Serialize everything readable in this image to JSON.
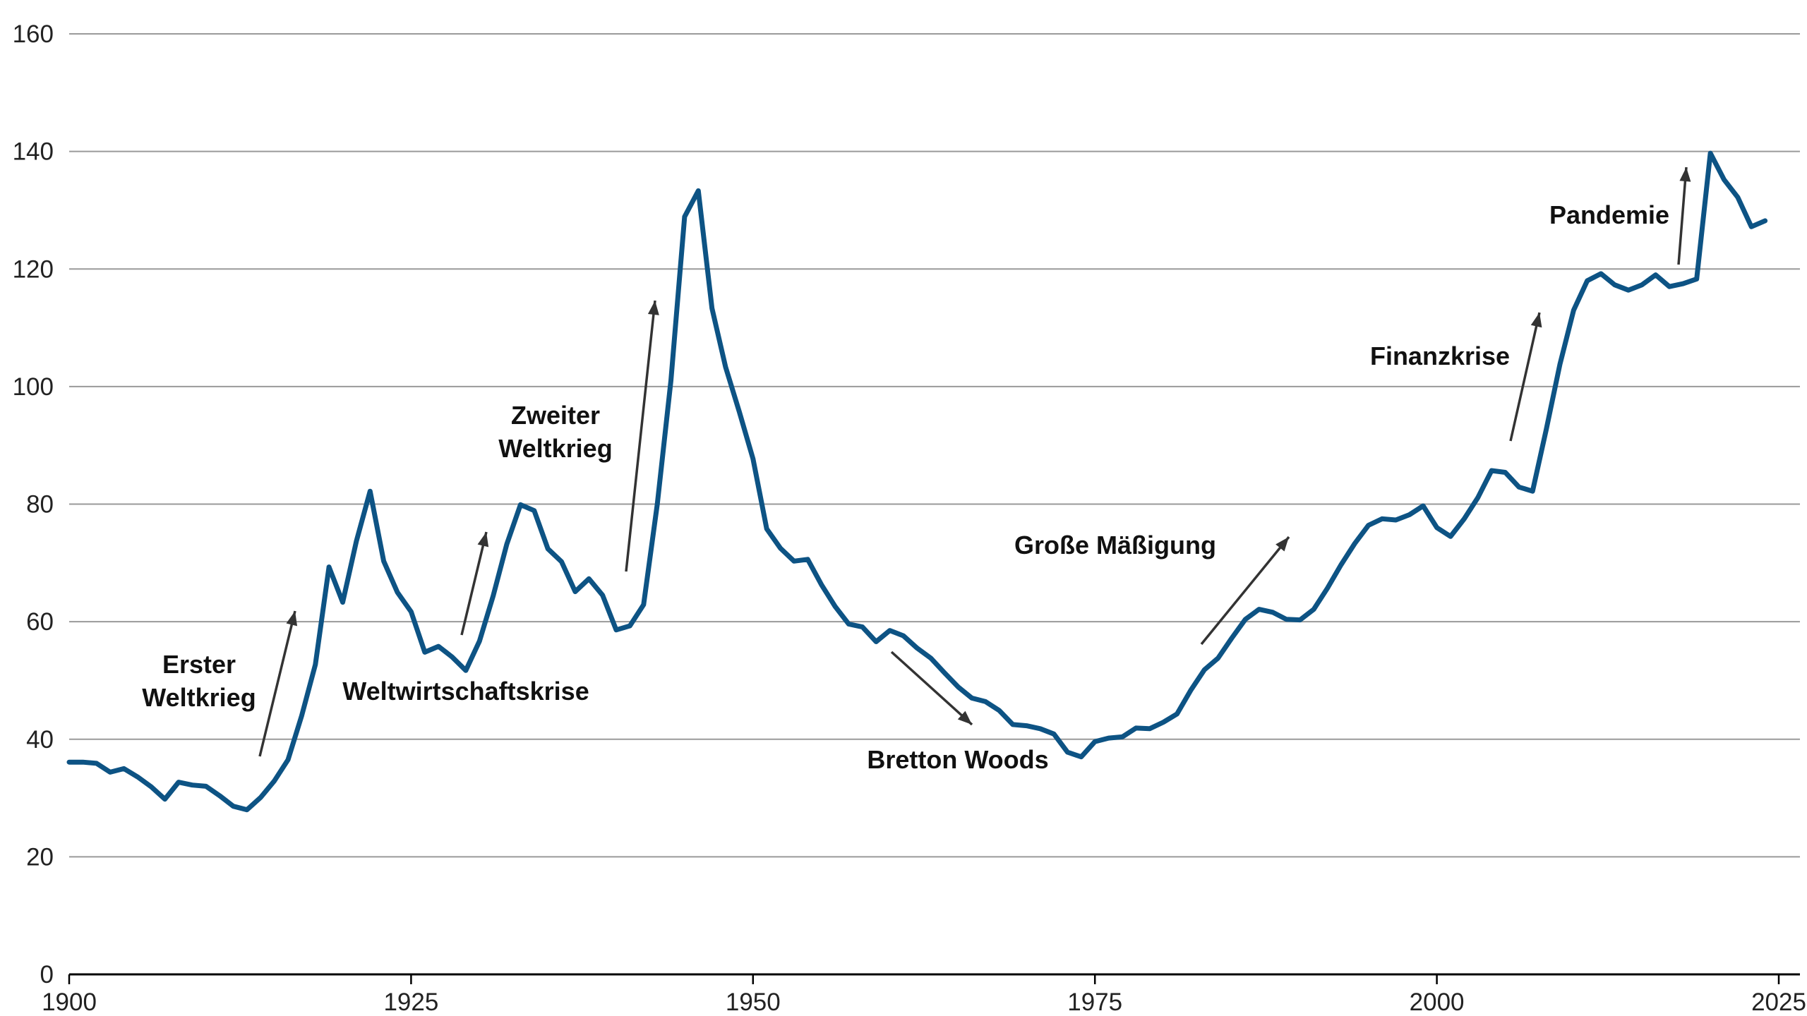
{
  "colors": {
    "series": "#0d5384",
    "arrow": "#333333",
    "grid": "#9a9a9a"
  },
  "chart_data": {
    "type": "line",
    "title": "",
    "xlabel": "",
    "ylabel": "",
    "xlim": [
      1900,
      2025
    ],
    "ylim": [
      0,
      160
    ],
    "yticks": [
      0,
      20,
      40,
      60,
      80,
      100,
      120,
      140,
      160
    ],
    "xticks": [
      1900,
      1925,
      1950,
      1975,
      2000,
      2025
    ],
    "grid": "horizontal",
    "series": [
      {
        "x": [
          1900,
          1901,
          1902,
          1903,
          1904,
          1905,
          1906,
          1907,
          1908,
          1909,
          1910,
          1911,
          1912,
          1913,
          1914,
          1915,
          1916,
          1917,
          1918,
          1919,
          1920,
          1921,
          1922,
          1923,
          1924,
          1925,
          1926,
          1927,
          1928,
          1929,
          1930,
          1931,
          1932,
          1933,
          1934,
          1935,
          1936,
          1937,
          1938,
          1939,
          1940,
          1941,
          1942,
          1943,
          1944,
          1945,
          1946,
          1947,
          1948,
          1949,
          1950,
          1951,
          1952,
          1953,
          1954,
          1955,
          1956,
          1957,
          1958,
          1959,
          1960,
          1961,
          1962,
          1963,
          1964,
          1965,
          1966,
          1967,
          1968,
          1969,
          1970,
          1971,
          1972,
          1973,
          1974,
          1975,
          1976,
          1977,
          1978,
          1979,
          1980,
          1981,
          1982,
          1983,
          1984,
          1985,
          1986,
          1987,
          1988,
          1989,
          1990,
          1991,
          1992,
          1993,
          1994,
          1995,
          1996,
          1997,
          1998,
          1999,
          2000,
          2001,
          2002,
          2003,
          2004,
          2005,
          2006,
          2007,
          2008,
          2009,
          2010,
          2011,
          2012,
          2013,
          2014,
          2015,
          2016,
          2017,
          2018,
          2019,
          2020,
          2021,
          2022,
          2023,
          2024
        ],
        "values": [
          36.1,
          36.1,
          35.9,
          34.4,
          35.0,
          33.6,
          31.9,
          29.8,
          32.7,
          32.2,
          32.0,
          30.4,
          28.6,
          28.0,
          30.1,
          32.9,
          36.5,
          44.0,
          52.7,
          69.3,
          63.3,
          73.7,
          82.2,
          70.3,
          65.0,
          61.7,
          54.8,
          55.8,
          54.0,
          51.7,
          56.7,
          64.4,
          73.2,
          79.9,
          78.9,
          72.4,
          70.2,
          65.1,
          67.3,
          64.5,
          58.6,
          59.3,
          62.9,
          80.0,
          101.0,
          128.9,
          133.3,
          113.3,
          103.3,
          95.7,
          87.7,
          75.8,
          72.5,
          70.3,
          70.6,
          66.3,
          62.6,
          59.6,
          59.1,
          56.6,
          58.5,
          57.6,
          55.5,
          53.8,
          51.3,
          48.9,
          47.0,
          46.4,
          44.9,
          42.5,
          42.3,
          41.8,
          40.9,
          37.8,
          37.0,
          39.6,
          40.2,
          40.4,
          41.9,
          41.8,
          42.9,
          44.3,
          48.3,
          51.8,
          53.8,
          57.2,
          60.4,
          62.1,
          61.6,
          60.4,
          60.3,
          62.1,
          65.7,
          69.7,
          73.3,
          76.4,
          77.5,
          77.3,
          78.2,
          79.7,
          76.0,
          74.5,
          77.5,
          81.1,
          85.7,
          85.4,
          82.9,
          82.2,
          92.7,
          103.8,
          113.0,
          118.0,
          119.2,
          117.3,
          116.4,
          117.3,
          119.0,
          117.0,
          117.5,
          118.3,
          139.7,
          135.2,
          132.2,
          127.2,
          128.2
        ]
      }
    ],
    "annotations": [
      {
        "lines": [
          "Erster",
          "Weltkrieg"
        ]
      },
      {
        "lines": [
          "Weltwirtschaftskrise"
        ]
      },
      {
        "lines": [
          "Zweiter",
          "Weltkrieg"
        ]
      },
      {
        "lines": [
          "Bretton Woods"
        ]
      },
      {
        "lines": [
          "Große Mäßigung"
        ]
      },
      {
        "lines": [
          "Finanzkrise"
        ]
      },
      {
        "lines": [
          "Pandemie"
        ]
      }
    ]
  }
}
